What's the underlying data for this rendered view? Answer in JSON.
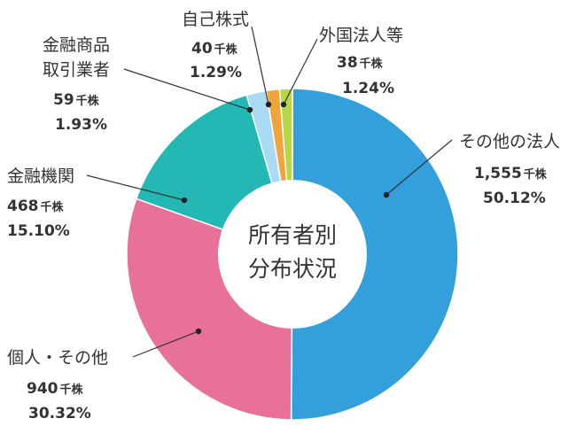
{
  "chart_data": {
    "type": "pie",
    "center_label": [
      "所有者別",
      "分布状況"
    ],
    "unit": "千株",
    "slices": [
      {
        "name": "その他の法人",
        "shares": "1,555",
        "unit": "千株",
        "percent_label": "50.12%",
        "value": 50.12,
        "color": "#34a0db"
      },
      {
        "name": "個人・その他",
        "shares": "940",
        "unit": "千株",
        "percent_label": "30.32%",
        "value": 30.32,
        "color": "#e8719a"
      },
      {
        "name": "金融機関",
        "shares": "468",
        "unit": "千株",
        "percent_label": "15.10%",
        "value": 15.1,
        "color": "#24b8b5"
      },
      {
        "name": [
          "金融商品",
          "取引業者"
        ],
        "shares": "59",
        "unit": "千株",
        "percent_label": "1.93%",
        "value": 1.93,
        "color": "#a9dbf5"
      },
      {
        "name": "自己株式",
        "shares": "40",
        "unit": "千株",
        "percent_label": "1.29%",
        "value": 1.29,
        "color": "#f0a53a"
      },
      {
        "name": "外国法人等",
        "shares": "38",
        "unit": "千株",
        "percent_label": "1.24%",
        "value": 1.24,
        "color": "#b9d646"
      }
    ]
  }
}
